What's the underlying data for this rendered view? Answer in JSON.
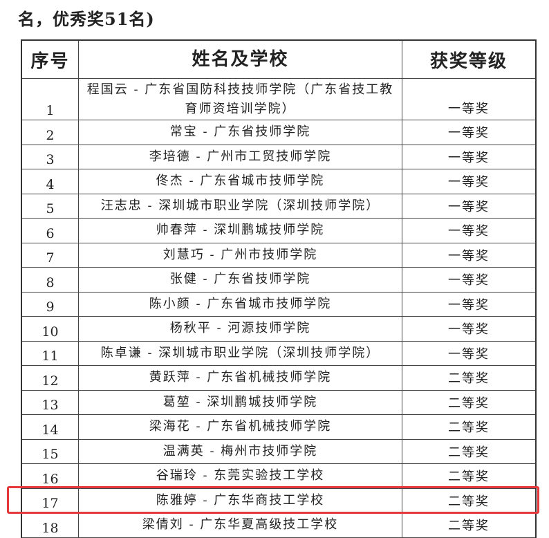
{
  "header": {
    "title": "名，优秀奖51名)"
  },
  "table": {
    "columns": [
      "序号",
      "姓名及学校",
      "获奖等级"
    ],
    "rows": [
      [
        "1",
        "程国云 - 广东省国防科技技师学院（广东省技工教育师资培训学院）",
        "一等奖"
      ],
      [
        "2",
        "常宝 - 广东省技师学院",
        "一等奖"
      ],
      [
        "3",
        "李培德 - 广州市工贸技师学院",
        "一等奖"
      ],
      [
        "4",
        "佟杰 - 广东省城市技师学院",
        "一等奖"
      ],
      [
        "5",
        "汪志忠 - 深圳城市职业学院（深圳技师学院）",
        "一等奖"
      ],
      [
        "6",
        "帅春萍 - 深圳鹏城技师学院",
        "一等奖"
      ],
      [
        "7",
        "刘慧巧 - 广州市技师学院",
        "一等奖"
      ],
      [
        "8",
        "张健 - 广东省技师学院",
        "一等奖"
      ],
      [
        "9",
        "陈小颜 - 广东省城市技师学院",
        "一等奖"
      ],
      [
        "10",
        "杨秋平 - 河源技师学院",
        "一等奖"
      ],
      [
        "11",
        "陈卓谦 - 深圳城市职业学院（深圳技师学院）",
        "一等奖"
      ],
      [
        "12",
        "黄跃萍 - 广东省机械技师学院",
        "二等奖"
      ],
      [
        "13",
        "葛堃 - 深圳鹏城技师学院",
        "二等奖"
      ],
      [
        "14",
        "梁海花 - 广东省机械技师学院",
        "二等奖"
      ],
      [
        "15",
        "温满英 - 梅州市技师学院",
        "二等奖"
      ],
      [
        "16",
        "谷瑞玲 - 东莞实验技工学校",
        "二等奖"
      ],
      [
        "17",
        "陈雅婷 - 广东华商技工学校",
        "二等奖"
      ],
      [
        "18",
        "梁倩刘 - 广东华夏高级技工学校",
        "二等奖"
      ]
    ]
  }
}
